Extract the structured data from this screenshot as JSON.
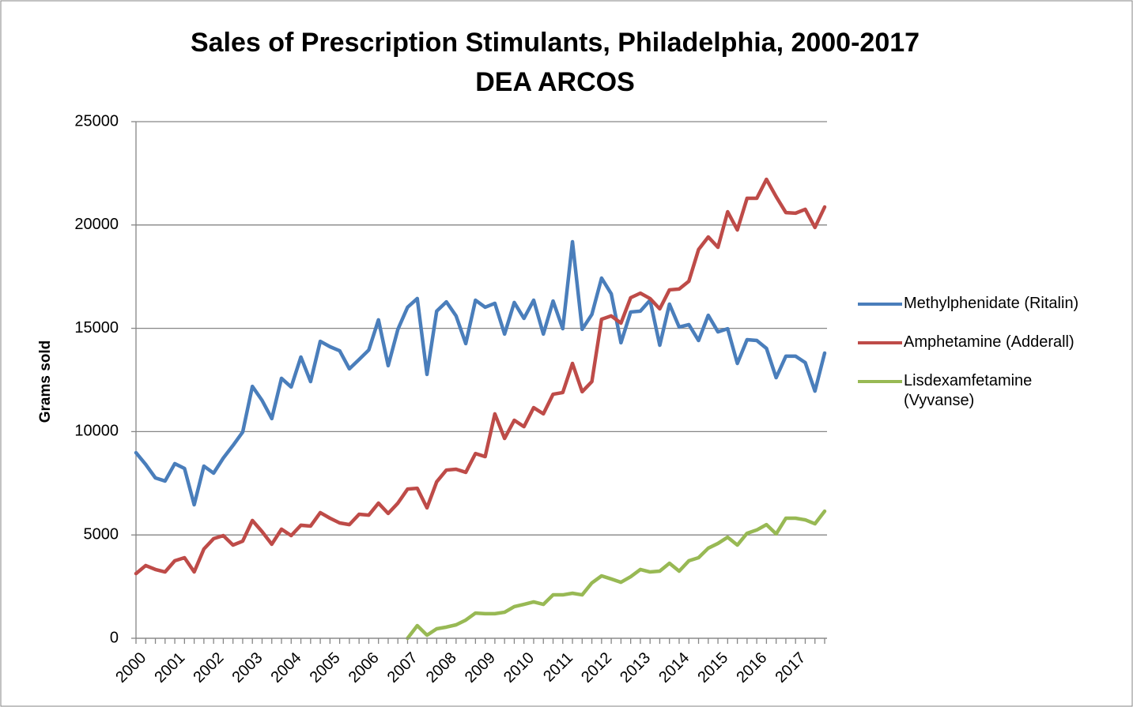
{
  "chart_data": {
    "type": "line",
    "title": "Sales of Prescription Stimulants, Philadelphia, 2000-2017",
    "subtitle": "DEA ARCOS",
    "y_label": "Grams sold",
    "categories": [
      "2000",
      null,
      null,
      null,
      "2001",
      null,
      null,
      null,
      "2002",
      null,
      null,
      null,
      "2003",
      null,
      null,
      null,
      "2004",
      null,
      null,
      null,
      "2005",
      null,
      null,
      null,
      "2006",
      null,
      null,
      null,
      "2007",
      null,
      null,
      null,
      "2008",
      null,
      null,
      null,
      "2009",
      null,
      null,
      null,
      "2010",
      null,
      null,
      null,
      "2011",
      null,
      null,
      null,
      "2012",
      null,
      null,
      null,
      "2013",
      null,
      null,
      null,
      "2014",
      null,
      null,
      null,
      "2015",
      null,
      null,
      null,
      "2016",
      null,
      null,
      null,
      "2017",
      null,
      null,
      null
    ],
    "series": [
      {
        "name": "Methylphenidate (Ritalin)",
        "color": "#4a7ebb",
        "values": [
          8980,
          8410,
          7760,
          7610,
          8450,
          8220,
          6460,
          8330,
          7990,
          8720,
          9330,
          9980,
          12190,
          11510,
          10630,
          12580,
          12160,
          13610,
          12420,
          14370,
          14110,
          13910,
          13040,
          13490,
          13950,
          15410,
          13190,
          14950,
          16020,
          16440,
          12770,
          15830,
          16280,
          15600,
          14260,
          16360,
          16020,
          16210,
          14720,
          16250,
          15480,
          16360,
          14720,
          16320,
          14980,
          19190,
          14950,
          15670,
          17430,
          16670,
          14300,
          15790,
          15830,
          16360,
          14180,
          16170,
          15060,
          15180,
          14410,
          15630,
          14830,
          14980,
          13300,
          14450,
          14410,
          14030,
          12610,
          13650,
          13650,
          13340,
          11960,
          13800
        ]
      },
      {
        "name": "Amphetamine (Adderall)",
        "color": "#be4b48",
        "values": [
          3130,
          3520,
          3330,
          3210,
          3750,
          3900,
          3210,
          4320,
          4820,
          4970,
          4510,
          4700,
          5700,
          5160,
          4550,
          5280,
          4970,
          5470,
          5430,
          6080,
          5810,
          5580,
          5500,
          6000,
          5960,
          6540,
          6040,
          6540,
          7220,
          7260,
          6310,
          7570,
          8140,
          8180,
          8030,
          8940,
          8790,
          10860,
          9670,
          10550,
          10240,
          11160,
          10860,
          11810,
          11890,
          13300,
          11930,
          12420,
          15440,
          15600,
          15250,
          16480,
          16700,
          16440,
          15940,
          16860,
          16900,
          17280,
          18810,
          19420,
          18920,
          20640,
          19760,
          21290,
          21290,
          22210,
          21370,
          20600,
          20570,
          20760,
          19880,
          20870
        ]
      },
      {
        "name": "Lisdexamfetamine (Vyvanse)",
        "color": "#98b954",
        "values": [
          null,
          null,
          null,
          null,
          null,
          null,
          null,
          null,
          null,
          null,
          null,
          null,
          null,
          null,
          null,
          null,
          null,
          null,
          null,
          null,
          null,
          null,
          null,
          null,
          null,
          null,
          null,
          null,
          0,
          610,
          150,
          460,
          540,
          650,
          880,
          1220,
          1190,
          1190,
          1260,
          1530,
          1640,
          1760,
          1640,
          2100,
          2100,
          2180,
          2100,
          2680,
          3020,
          2870,
          2710,
          2980,
          3330,
          3210,
          3250,
          3630,
          3250,
          3750,
          3900,
          4360,
          4590,
          4890,
          4510,
          5080,
          5240,
          5500,
          5050,
          5810,
          5810,
          5730,
          5540,
          6150
        ]
      }
    ],
    "ylim": [
      0,
      25000
    ],
    "yticks": [
      0,
      5000,
      10000,
      15000,
      20000,
      25000
    ],
    "grid": true,
    "legend": "right"
  }
}
